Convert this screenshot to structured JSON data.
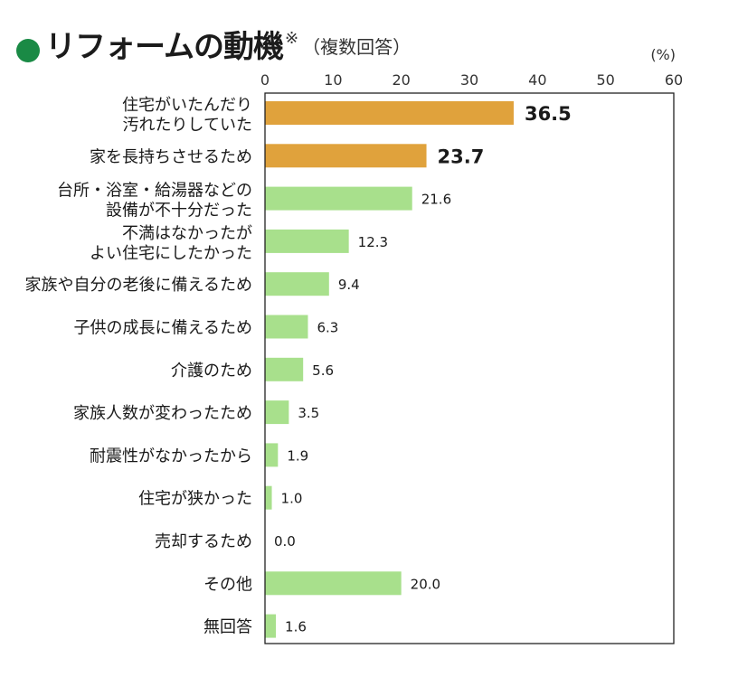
{
  "header": {
    "title": "リフォームの動機",
    "note_mark": "※",
    "subtitle": "（複数回答）"
  },
  "colors": {
    "title_dot": "#1a8a45",
    "highlight_bar": "#e0a23c",
    "normal_bar": "#a8e08c"
  },
  "chart_data": {
    "type": "bar",
    "orientation": "horizontal",
    "unit": "(%)",
    "xlim": [
      0,
      60
    ],
    "xticks": [
      0,
      10,
      20,
      30,
      40,
      50,
      60
    ],
    "categories": [
      "住宅がいたんだり\n汚れたりしていた",
      "家を長持ちさせるため",
      "台所・浴室・給湯器などの\n設備が不十分だった",
      "不満はなかったが\nよい住宅にしたかった",
      "家族や自分の老後に備えるため",
      "子供の成長に備えるため",
      "介護のため",
      "家族人数が変わったため",
      "耐震性がなかったから",
      "住宅が狭かった",
      "売却するため",
      "その他",
      "無回答"
    ],
    "values": [
      36.5,
      23.7,
      21.6,
      12.3,
      9.4,
      6.3,
      5.6,
      3.5,
      1.9,
      1.0,
      0.0,
      20.0,
      1.6
    ],
    "value_labels": [
      "36.5",
      "23.7",
      "21.6",
      "12.3",
      "9.4",
      "6.3",
      "5.6",
      "3.5",
      "1.9",
      "1.0",
      "0.0",
      "20.0",
      "1.6"
    ],
    "highlighted": [
      true,
      true,
      false,
      false,
      false,
      false,
      false,
      false,
      false,
      false,
      false,
      false,
      false
    ],
    "grid": false
  }
}
